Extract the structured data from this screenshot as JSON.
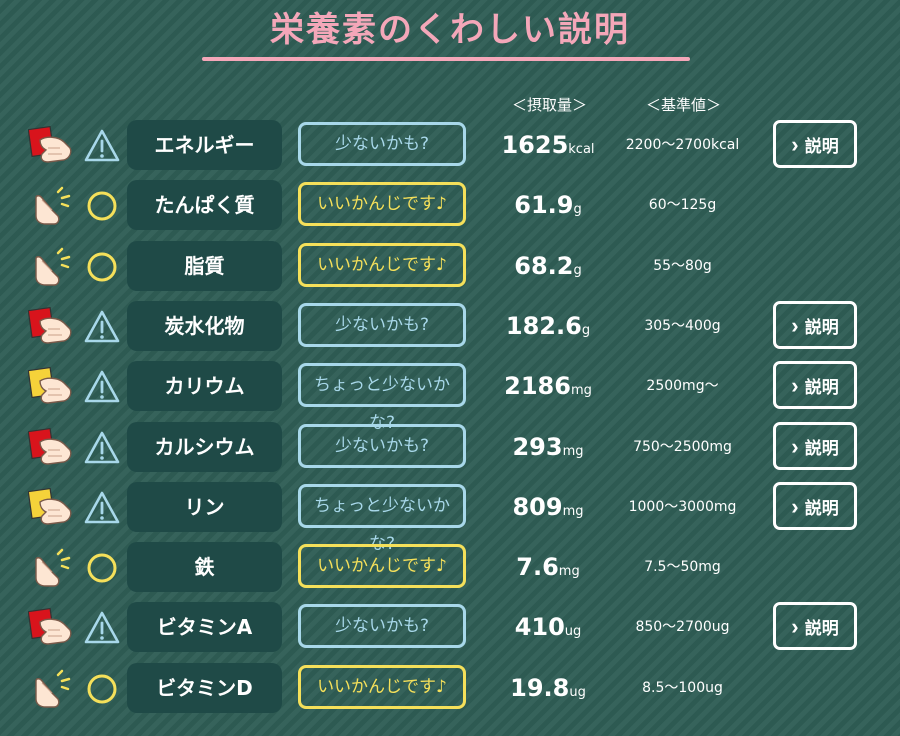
{
  "page": {
    "title": "栄養素のくわしい説明"
  },
  "headers": {
    "intake": "＜摂取量＞",
    "reference": "＜基準値＞"
  },
  "explain_label": "説明",
  "rows": [
    {
      "name": "エネルギー",
      "status": "low",
      "badge": "少ないかも?",
      "value": "1625",
      "unit": "kcal",
      "reference": "2200～2700kcal",
      "card": "red",
      "explain": true
    },
    {
      "name": "たんぱく質",
      "status": "ok",
      "badge": "いいかんじです♪",
      "value": "61.9",
      "unit": "g",
      "reference": "60～125g",
      "card": "none",
      "explain": false
    },
    {
      "name": "脂質",
      "status": "ok",
      "badge": "いいかんじです♪",
      "value": "68.2",
      "unit": "g",
      "reference": "55～80g",
      "card": "none",
      "explain": false
    },
    {
      "name": "炭水化物",
      "status": "low",
      "badge": "少ないかも?",
      "value": "182.6",
      "unit": "g",
      "reference": "305～400g",
      "card": "red",
      "explain": true
    },
    {
      "name": "カリウム",
      "status": "low",
      "badge": "ちょっと少ないかな?",
      "value": "2186",
      "unit": "mg",
      "reference": "2500mg～",
      "card": "yellow",
      "explain": true
    },
    {
      "name": "カルシウム",
      "status": "low",
      "badge": "少ないかも?",
      "value": "293",
      "unit": "mg",
      "reference": "750～2500mg",
      "card": "red",
      "explain": true
    },
    {
      "name": "リン",
      "status": "low",
      "badge": "ちょっと少ないかな?",
      "value": "809",
      "unit": "mg",
      "reference": "1000～3000mg",
      "card": "yellow",
      "explain": true
    },
    {
      "name": "鉄",
      "status": "ok",
      "badge": "いいかんじです♪",
      "value": "7.6",
      "unit": "mg",
      "reference": "7.5～50mg",
      "card": "none",
      "explain": false
    },
    {
      "name": "ビタミンA",
      "status": "low",
      "badge": "少ないかも?",
      "value": "410",
      "unit": "ug",
      "reference": "850～2700ug",
      "card": "red",
      "explain": true
    },
    {
      "name": "ビタミンD",
      "status": "ok",
      "badge": "いいかんじです♪",
      "value": "19.8",
      "unit": "ug",
      "reference": "8.5～100ug",
      "card": "none",
      "explain": false
    }
  ],
  "colors": {
    "background": "#2f5d55",
    "name_cell": "#1f4a47",
    "accent_pink": "#f4a7b9",
    "low_border": "#a8d8ea",
    "ok_border": "#f5e05a",
    "red_card": "#d8141c",
    "yellow_card": "#f5d23a"
  },
  "icons": {
    "low": "warning-triangle-icon",
    "ok": "circle-ok-icon",
    "hand_card": "hand-holding-card-icon",
    "hand_point": "hand-pointing-icon"
  }
}
